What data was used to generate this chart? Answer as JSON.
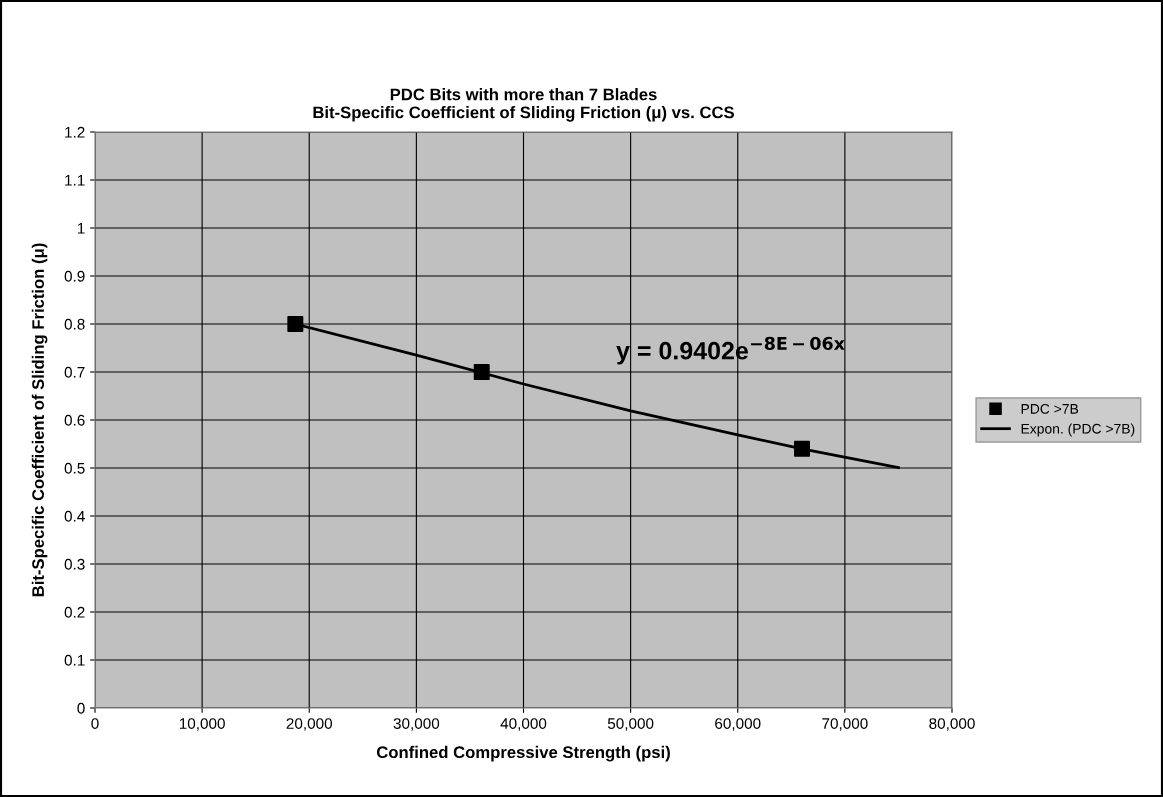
{
  "chart_data": {
    "type": "scatter",
    "title": "PDC Bits with more than 7 Blades\nBit-Specific Coefficient of Sliding Friction (μ) vs. CCS",
    "xlabel": "Confined Compressive Strength (psi)",
    "ylabel": "Bit-Specific Coefficient of Sliding Friction (μ)",
    "x": [
      18700,
      36100,
      66000
    ],
    "series": [
      {
        "name": "PDC >7B",
        "color": "#000000",
        "marker": "square",
        "values": [
          0.8,
          0.7,
          0.54
        ]
      },
      {
        "name": "Expon. (PDC >7B)",
        "type": "line",
        "color": "#000000",
        "marker": "none",
        "line_style": "solid",
        "x": [
          18700,
          30000,
          40000,
          50000,
          60000,
          66000,
          75000
        ],
        "values": [
          0.8,
          0.735,
          0.675,
          0.619,
          0.569,
          0.54,
          0.501
        ]
      }
    ],
    "annotations": [
      "y = 0.9402e$^{−8E−06x}$"
    ],
    "xlim": [
      0,
      80000
    ],
    "xticks": [
      {
        "value": 0,
        "label": "0"
      },
      {
        "value": 10000,
        "label": "10,000"
      },
      {
        "value": 20000,
        "label": "20,000"
      },
      {
        "value": 30000,
        "label": "30,000"
      },
      {
        "value": 40000,
        "label": "40,000"
      },
      {
        "value": 50000,
        "label": "50,000"
      },
      {
        "value": 60000,
        "label": "60,000"
      },
      {
        "value": 70000,
        "label": "70,000"
      },
      {
        "value": 80000,
        "label": "80,000"
      }
    ],
    "ylim": [
      0,
      1.2
    ],
    "yticks": [
      0,
      0.1,
      0.2,
      0.3,
      0.4,
      0.5,
      0.6,
      0.7,
      0.8,
      0.9,
      1,
      1.1,
      1.2
    ],
    "grid": true,
    "legend": "right"
  }
}
